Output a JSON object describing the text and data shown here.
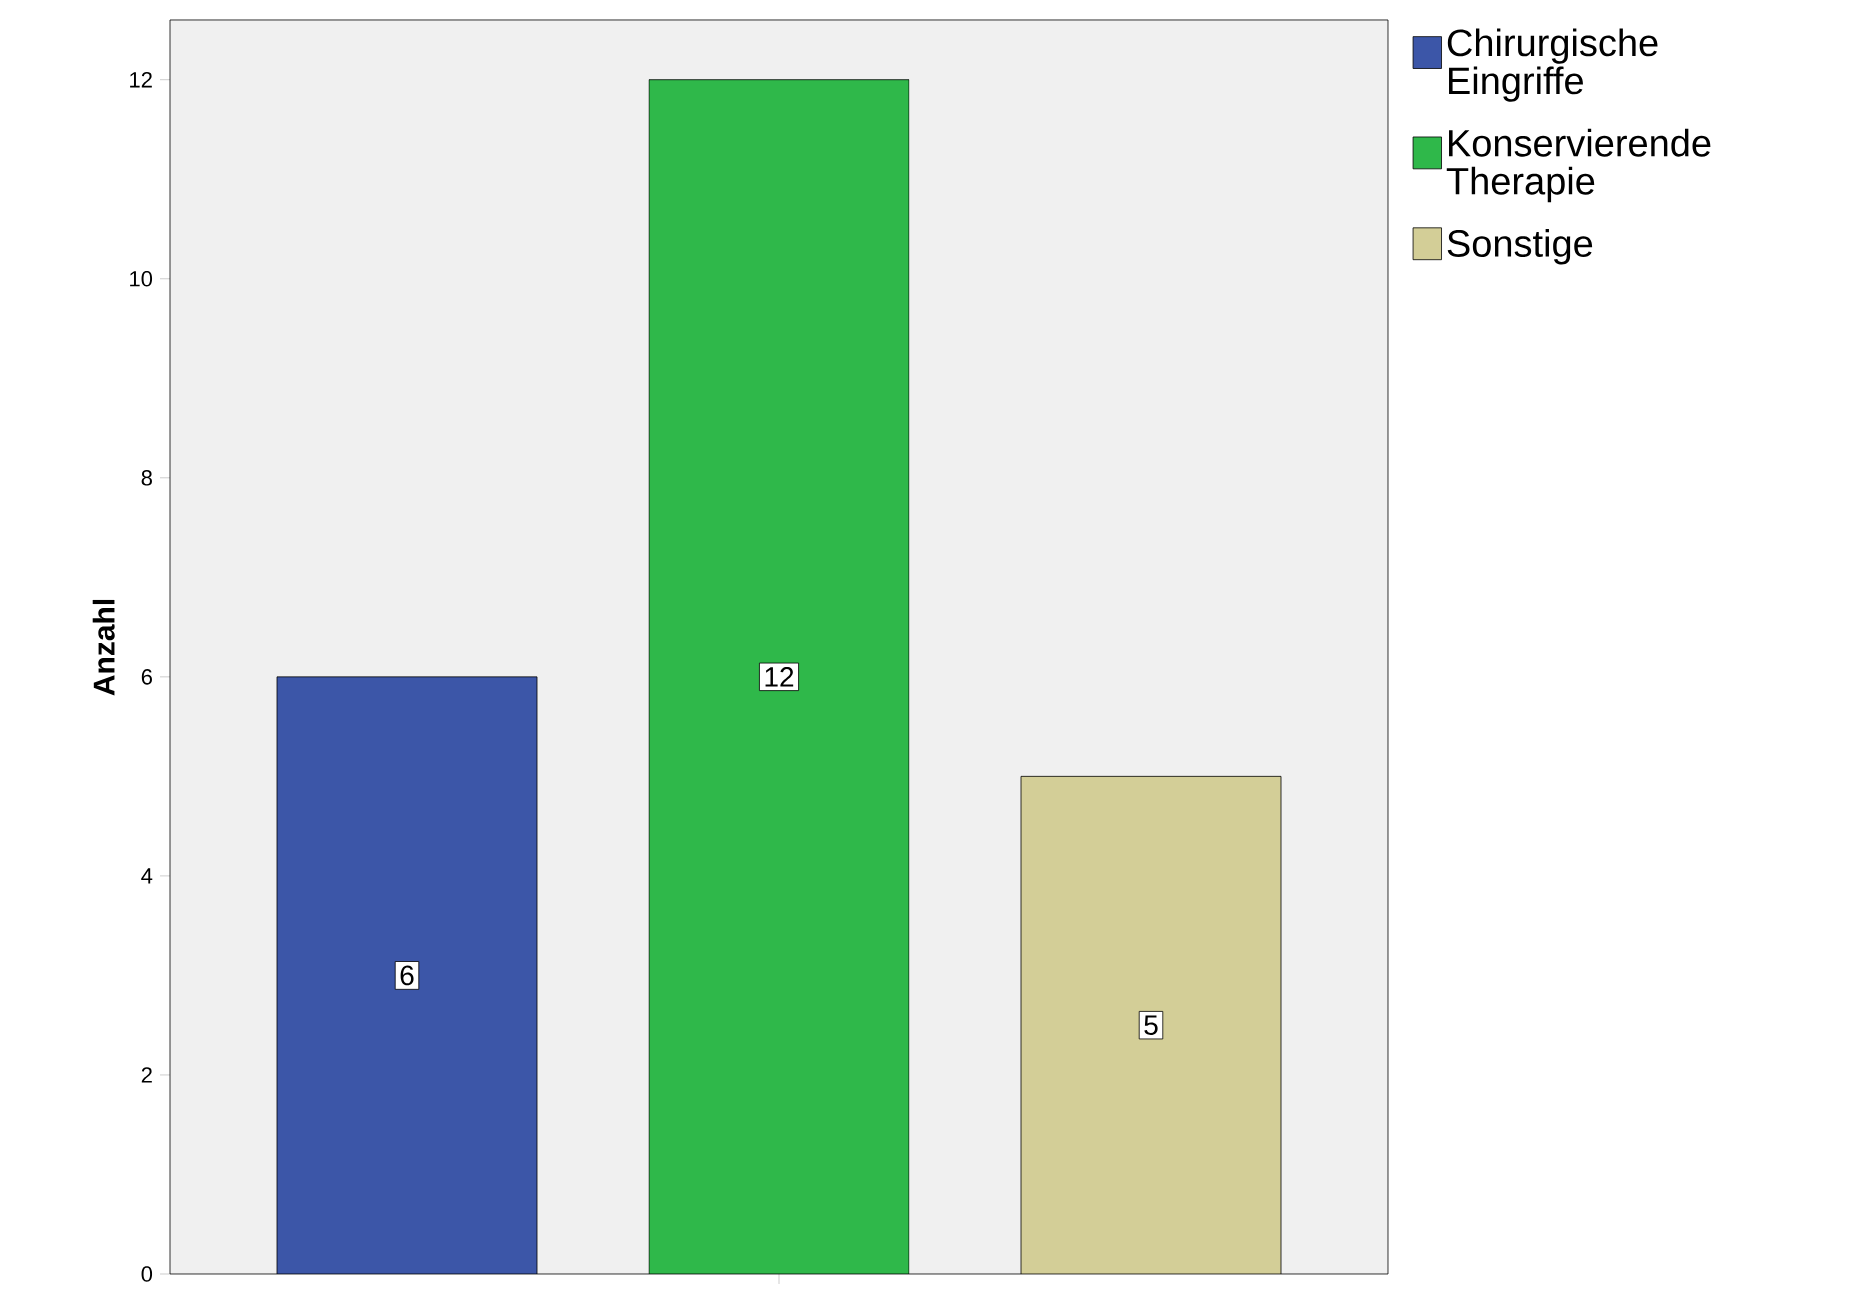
{
  "chart_data": {
    "type": "bar",
    "ylabel": "Anzahl",
    "categories": [
      null
    ],
    "series": [
      {
        "name": "Chirurgische Eingriffe",
        "color": "#3c56a8",
        "values": [
          6
        ]
      },
      {
        "name": "Konservierende Therapie",
        "color": "#2fb84a",
        "values": [
          12
        ]
      },
      {
        "name": "Sonstige",
        "color": "#d3ce97",
        "values": [
          5
        ]
      }
    ],
    "ylim": [
      0,
      12.6
    ],
    "yticks": [
      0,
      2,
      4,
      6,
      8,
      10,
      12
    ],
    "grid": false,
    "legend": "top right",
    "data_labels": true
  }
}
